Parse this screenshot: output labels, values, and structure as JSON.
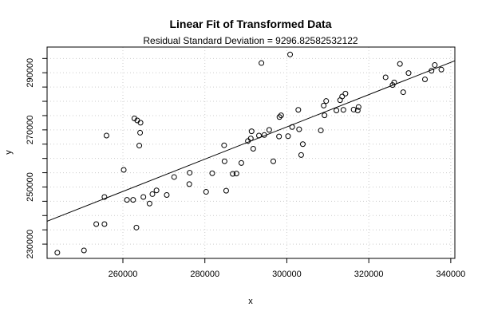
{
  "chart_data": {
    "type": "scatter",
    "title": "Linear Fit of Transformed Data",
    "subtitle": "Residual Standard Deviation =  9296.82582532122",
    "xlabel": "x",
    "ylabel": "y",
    "xlim": [
      241500,
      341000
    ],
    "ylim": [
      225000,
      299000
    ],
    "x_ticks": [
      260000,
      280000,
      300000,
      320000,
      340000
    ],
    "x_tick_labels": [
      "260000",
      "280000",
      "300000",
      "320000",
      "340000"
    ],
    "y_ticks": [
      230000,
      235000,
      240000,
      245000,
      250000,
      255000,
      260000,
      265000,
      270000,
      275000,
      280000,
      285000,
      290000,
      295000
    ],
    "y_tick_labels": [
      "230000",
      "",
      "",
      "",
      "250000",
      "",
      "",
      "",
      "270000",
      "",
      "",
      "",
      "290000",
      ""
    ],
    "grid": true,
    "points": [
      [
        244000,
        227000
      ],
      [
        250500,
        227800
      ],
      [
        253500,
        237000
      ],
      [
        255500,
        237000
      ],
      [
        255500,
        246500
      ],
      [
        256000,
        268000
      ],
      [
        260200,
        256000
      ],
      [
        261000,
        245500
      ],
      [
        262500,
        245500
      ],
      [
        262800,
        274000
      ],
      [
        263300,
        235800
      ],
      [
        263500,
        273300
      ],
      [
        264000,
        264500
      ],
      [
        264200,
        269000
      ],
      [
        264300,
        272500
      ],
      [
        265000,
        246500
      ],
      [
        266500,
        244200
      ],
      [
        267200,
        247500
      ],
      [
        268200,
        248800
      ],
      [
        270700,
        247200
      ],
      [
        272500,
        253500
      ],
      [
        276200,
        251000
      ],
      [
        276300,
        255000
      ],
      [
        280300,
        248300
      ],
      [
        281800,
        254800
      ],
      [
        284700,
        264600
      ],
      [
        284800,
        259000
      ],
      [
        285200,
        248700
      ],
      [
        286800,
        254600
      ],
      [
        287700,
        254700
      ],
      [
        288900,
        258400
      ],
      [
        290500,
        266100
      ],
      [
        291200,
        267000
      ],
      [
        291400,
        269500
      ],
      [
        291800,
        263400
      ],
      [
        293200,
        268000
      ],
      [
        293800,
        293400
      ],
      [
        294500,
        268200
      ],
      [
        295700,
        270000
      ],
      [
        296700,
        259000
      ],
      [
        298100,
        267700
      ],
      [
        298200,
        274500
      ],
      [
        298600,
        275100
      ],
      [
        300300,
        267800
      ],
      [
        300800,
        296400
      ],
      [
        301300,
        271000
      ],
      [
        302800,
        277000
      ],
      [
        303000,
        270200
      ],
      [
        303500,
        261200
      ],
      [
        303900,
        265000
      ],
      [
        308300,
        269800
      ],
      [
        309000,
        278500
      ],
      [
        309200,
        275100
      ],
      [
        309600,
        280100
      ],
      [
        312100,
        276800
      ],
      [
        313000,
        280400
      ],
      [
        313500,
        281700
      ],
      [
        313800,
        277000
      ],
      [
        314300,
        282700
      ],
      [
        316300,
        277100
      ],
      [
        317300,
        276800
      ],
      [
        317500,
        278000
      ],
      [
        324100,
        288400
      ],
      [
        325800,
        285700
      ],
      [
        326200,
        286600
      ],
      [
        327600,
        293100
      ],
      [
        328400,
        283200
      ],
      [
        329700,
        289900
      ],
      [
        333700,
        287700
      ],
      [
        335300,
        290700
      ],
      [
        336100,
        292700
      ],
      [
        337700,
        291100
      ]
    ],
    "fit_line": {
      "x": [
        241500,
        341000
      ],
      "y": [
        238000,
        294200
      ]
    }
  }
}
